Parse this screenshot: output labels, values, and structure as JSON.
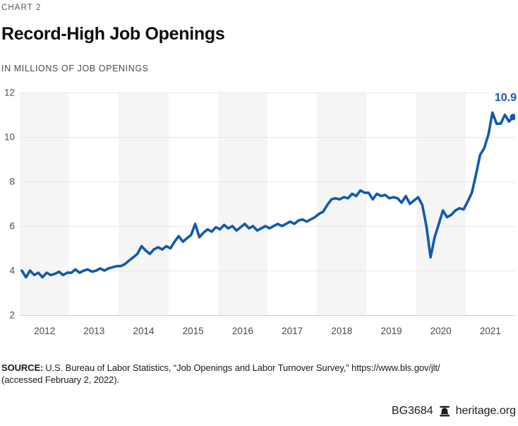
{
  "header": {
    "kicker": "CHART 2",
    "title": "Record-High Job Openings",
    "subtitle": "IN MILLIONS OF JOB OPENINGS"
  },
  "chart_data": {
    "type": "line",
    "title": "Record-High Job Openings",
    "ylabel": "IN MILLIONS OF JOB OPENINGS",
    "xlabel": "",
    "frequency": "monthly",
    "x_range": [
      "2012-01",
      "2021-12"
    ],
    "x_tick_labels": [
      "2012",
      "2013",
      "2014",
      "2015",
      "2016",
      "2017",
      "2018",
      "2019",
      "2020",
      "2021"
    ],
    "yticks": [
      12,
      10,
      8,
      6,
      4,
      2
    ],
    "ylim": [
      2,
      12
    ],
    "grid": "horizontal",
    "legend": "none",
    "band_color": "#f5f5f5",
    "line_color": "#1259ad",
    "end_label": "10.9",
    "end_value": 10.9,
    "series": [
      {
        "name": "Job openings (millions)",
        "values": [
          4.0,
          3.7,
          4.0,
          3.8,
          3.9,
          3.7,
          3.9,
          3.8,
          3.85,
          3.95,
          3.8,
          3.9,
          3.9,
          4.05,
          3.9,
          4.0,
          4.05,
          3.95,
          4.0,
          4.1,
          4.0,
          4.1,
          4.15,
          4.2,
          4.2,
          4.3,
          4.45,
          4.6,
          4.75,
          5.1,
          4.9,
          4.75,
          4.95,
          5.05,
          4.95,
          5.1,
          5.0,
          5.3,
          5.55,
          5.3,
          5.45,
          5.6,
          6.1,
          5.5,
          5.7,
          5.85,
          5.75,
          5.95,
          5.85,
          6.05,
          5.9,
          6.0,
          5.8,
          5.95,
          6.1,
          5.9,
          6.0,
          5.8,
          5.9,
          6.0,
          5.9,
          6.0,
          6.1,
          6.0,
          6.1,
          6.2,
          6.1,
          6.25,
          6.3,
          6.2,
          6.3,
          6.4,
          6.55,
          6.65,
          6.95,
          7.2,
          7.25,
          7.2,
          7.3,
          7.25,
          7.45,
          7.35,
          7.6,
          7.5,
          7.5,
          7.2,
          7.45,
          7.35,
          7.4,
          7.25,
          7.3,
          7.25,
          7.05,
          7.35,
          7.0,
          7.15,
          7.3,
          6.95,
          6.0,
          4.6,
          5.5,
          6.1,
          6.7,
          6.4,
          6.5,
          6.7,
          6.8,
          6.75,
          7.1,
          7.5,
          8.3,
          9.2,
          9.5,
          10.1,
          11.1,
          10.6,
          10.6,
          11.0,
          10.7,
          10.9
        ]
      }
    ]
  },
  "source": {
    "label": "SOURCE:",
    "line1": "U.S. Bureau of Labor Statistics, “Job Openings and Labor Turnover Survey,” https://www.bls.gov/jlt/",
    "line2": "(accessed February 2, 2022)."
  },
  "footer": {
    "doc_id": "BG3684",
    "logo": "liberty-bell-icon",
    "site": "heritage.org"
  }
}
